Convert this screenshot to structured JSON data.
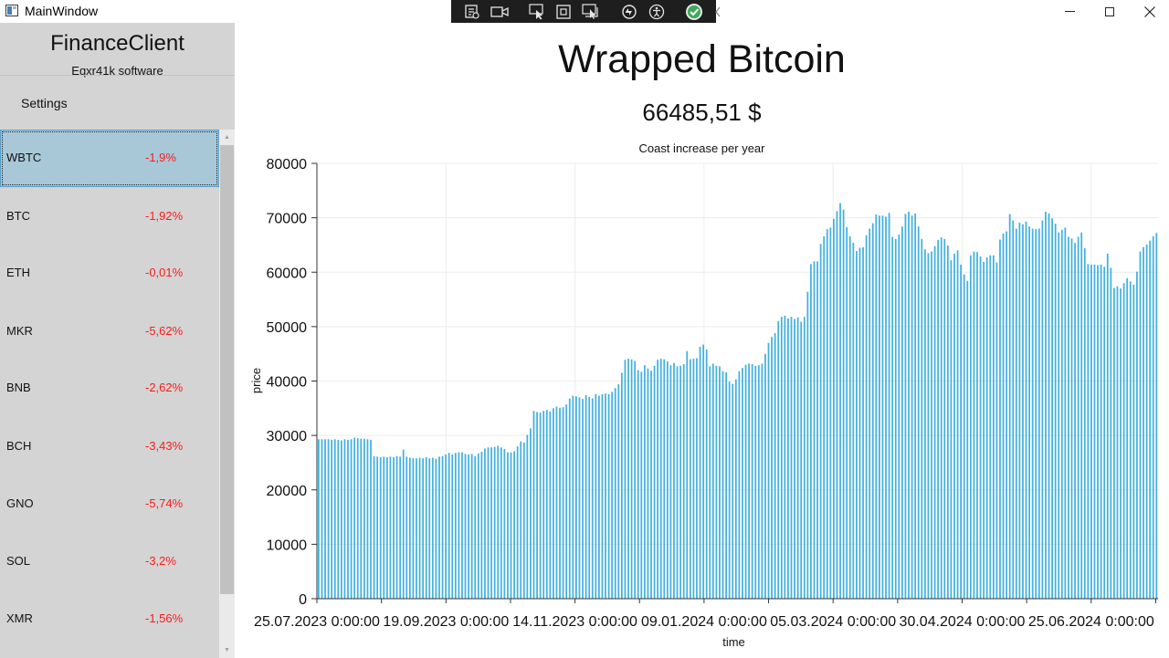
{
  "window": {
    "title": "MainWindow"
  },
  "debug_toolbar": {
    "icons": [
      "live-visual-tree-icon",
      "video-camera-icon",
      "select-element-icon",
      "display-layout-adorners-icon",
      "track-focus-icon",
      "hot-reload-icon",
      "accessibility-icon",
      "checkmark-icon",
      "collapse-chevron-icon"
    ]
  },
  "sidebar": {
    "app_name": "FinanceClient",
    "app_subtitle": "Eqxr41k software",
    "settings_label": "Settings",
    "items": [
      {
        "symbol": "WBTC",
        "change": "-1,9%",
        "selected": true
      },
      {
        "symbol": "BTC",
        "change": "-1,92%"
      },
      {
        "symbol": "ETH",
        "change": "-0,01%"
      },
      {
        "symbol": "MKR",
        "change": "-5,62%"
      },
      {
        "symbol": "BNB",
        "change": "-2,62%"
      },
      {
        "symbol": "BCH",
        "change": "-3,43%"
      },
      {
        "symbol": "GNO",
        "change": "-5,74%"
      },
      {
        "symbol": "SOL",
        "change": "-3,2%"
      },
      {
        "symbol": "XMR",
        "change": "-1,56%"
      }
    ]
  },
  "main": {
    "coin_name": "Wrapped Bitcoin",
    "price": "66485,51 $"
  },
  "colors": {
    "bar": "#45b1e0",
    "negative": "#ff1a1a",
    "selected_row": "#a8c8d8",
    "sidebar_bg": "#d4d4d4"
  },
  "chart_data": {
    "type": "bar",
    "title": "Coast increase per year",
    "xlabel": "time",
    "ylabel": "price",
    "ylim": [
      0,
      80000
    ],
    "yticks": [
      0,
      10000,
      20000,
      30000,
      40000,
      50000,
      60000,
      70000,
      80000
    ],
    "xticks": [
      "25.07.2023 0:00:00",
      "19.09.2023 0:00:00",
      "14.11.2023 0:00:00",
      "09.01.2024 0:00:00",
      "05.03.2024 0:00:00",
      "30.04.2024 0:00:00",
      "25.06.2024 0:00:00"
    ],
    "xrange": [
      "2023-07-25",
      "2024-07-29"
    ],
    "grid": true,
    "series": [
      {
        "values": [
          29300,
          29300,
          29300,
          29300,
          29200,
          29300,
          29200,
          29100,
          29300,
          29200,
          29300,
          29600,
          29500,
          29400,
          29400,
          29300,
          29200,
          26200,
          26100,
          26000,
          26100,
          26000,
          26100,
          26000,
          26200,
          26100,
          27400,
          26100,
          25900,
          25800,
          25800,
          25900,
          25800,
          26000,
          25800,
          25900,
          25700,
          26100,
          26200,
          26500,
          26800,
          26500,
          26800,
          26900,
          26900,
          26600,
          26500,
          26600,
          26200,
          26700,
          27000,
          27600,
          27800,
          27800,
          27900,
          28100,
          27800,
          27500,
          26900,
          26900,
          27100,
          28000,
          28900,
          28700,
          30100,
          31300,
          34500,
          34300,
          34200,
          34500,
          34700,
          34400,
          35000,
          35300,
          35100,
          35200,
          35700,
          36800,
          37300,
          37200,
          37000,
          36700,
          37400,
          37100,
          36800,
          37600,
          37300,
          37600,
          37700,
          37600,
          38000,
          38700,
          39400,
          41500,
          43900,
          44100,
          44000,
          43700,
          42000,
          41700,
          42900,
          42300,
          41900,
          42800,
          43900,
          44100,
          44000,
          43600,
          42900,
          43300,
          42700,
          42800,
          43100,
          45500,
          44000,
          44100,
          44200,
          46300,
          46700,
          45800,
          42700,
          43200,
          42800,
          42700,
          41800,
          41600,
          39900,
          39500,
          40300,
          41800,
          42400,
          43000,
          43200,
          43100,
          42800,
          42900,
          43200,
          45000,
          47000,
          48100,
          48800,
          51000,
          51800,
          52000,
          51500,
          51800,
          51400,
          51700,
          50900,
          51800,
          56400,
          61500,
          62000,
          62000,
          65200,
          66600,
          67900,
          68200,
          69800,
          71200,
          72700,
          71500,
          68300,
          66600,
          65400,
          63900,
          64500,
          64600,
          66800,
          68000,
          69000,
          70600,
          70400,
          70400,
          70200,
          70900,
          66500,
          66100,
          66900,
          68400,
          70700,
          71100,
          70400,
          70800,
          68400,
          66100,
          64200,
          63500,
          63800,
          64800,
          65900,
          66400,
          66100,
          64900,
          62200,
          63400,
          64000,
          61400,
          59600,
          58400,
          63100,
          63800,
          63700,
          62900,
          61900,
          62700,
          63100,
          63100,
          61800,
          66000,
          67100,
          67500,
          70700,
          69500,
          68000,
          69100,
          68800,
          69300,
          68400,
          68000,
          67900,
          68000,
          69500,
          71100,
          70800,
          69900,
          68900,
          67300,
          67800,
          68200,
          66500,
          66200,
          65400,
          66500,
          67300,
          64400,
          61500,
          61400,
          61400,
          61300,
          61400,
          61000,
          63400,
          60800,
          57100,
          57400,
          57000,
          58000,
          58900,
          58300,
          57700,
          60100,
          63800,
          64600,
          65100,
          65800,
          66600,
          67200
        ]
      }
    ]
  }
}
